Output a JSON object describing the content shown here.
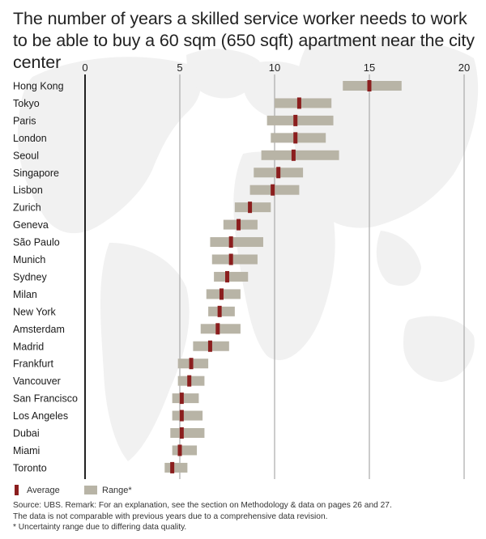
{
  "title": "The number of years a skilled service worker needs to work to be able to buy a 60 sqm (650 sqft) apartment near the city center",
  "colors": {
    "average": "#8b1e1e",
    "range": "#b8b4a6",
    "map": "#f1f1f1",
    "axis": "#222222",
    "grid": "#9a9a9a"
  },
  "legend": {
    "average": "Average",
    "range": "Range*"
  },
  "footer": {
    "source": "Source: UBS. Remark: For an explanation, see the section on Methodology & data on pages 26 and 27.",
    "note": "The data is not comparable with previous years due to a comprehensive data revision.",
    "footnote": "* Uncertainty range due to differing data quality."
  },
  "chart_data": {
    "type": "bar",
    "subtype": "range-with-average",
    "x_ticks": [
      0,
      5,
      10,
      15,
      20
    ],
    "xlim": [
      0,
      20
    ],
    "grid": true,
    "legend_position": "bottom-left",
    "categories": [
      "Hong Kong",
      "Tokyo",
      "Paris",
      "London",
      "Seoul",
      "Singapore",
      "Lisbon",
      "Zurich",
      "Geneva",
      "São Paulo",
      "Munich",
      "Sydney",
      "Milan",
      "New York",
      "Amsterdam",
      "Madrid",
      "Frankfurt",
      "Vancouver",
      "San Francisco",
      "Los Angeles",
      "Dubai",
      "Miami",
      "Toronto"
    ],
    "series": [
      {
        "name": "Average",
        "values": [
          15.0,
          11.3,
          11.1,
          11.1,
          11.0,
          10.2,
          9.9,
          8.7,
          8.1,
          7.7,
          7.7,
          7.5,
          7.2,
          7.1,
          7.0,
          6.6,
          5.6,
          5.5,
          5.1,
          5.1,
          5.1,
          5.0,
          4.6
        ]
      },
      {
        "name": "Range*",
        "low": [
          13.6,
          10.0,
          9.6,
          9.8,
          9.3,
          8.9,
          8.7,
          7.9,
          7.3,
          6.6,
          6.7,
          6.8,
          6.4,
          6.5,
          6.1,
          5.7,
          4.9,
          4.9,
          4.6,
          4.6,
          4.5,
          4.6,
          4.2
        ],
        "high": [
          16.7,
          13.0,
          13.1,
          12.7,
          13.4,
          11.5,
          11.3,
          9.8,
          9.1,
          9.4,
          9.1,
          8.6,
          8.2,
          7.9,
          8.2,
          7.6,
          6.5,
          6.3,
          6.0,
          6.2,
          6.3,
          5.9,
          5.4
        ]
      }
    ]
  }
}
